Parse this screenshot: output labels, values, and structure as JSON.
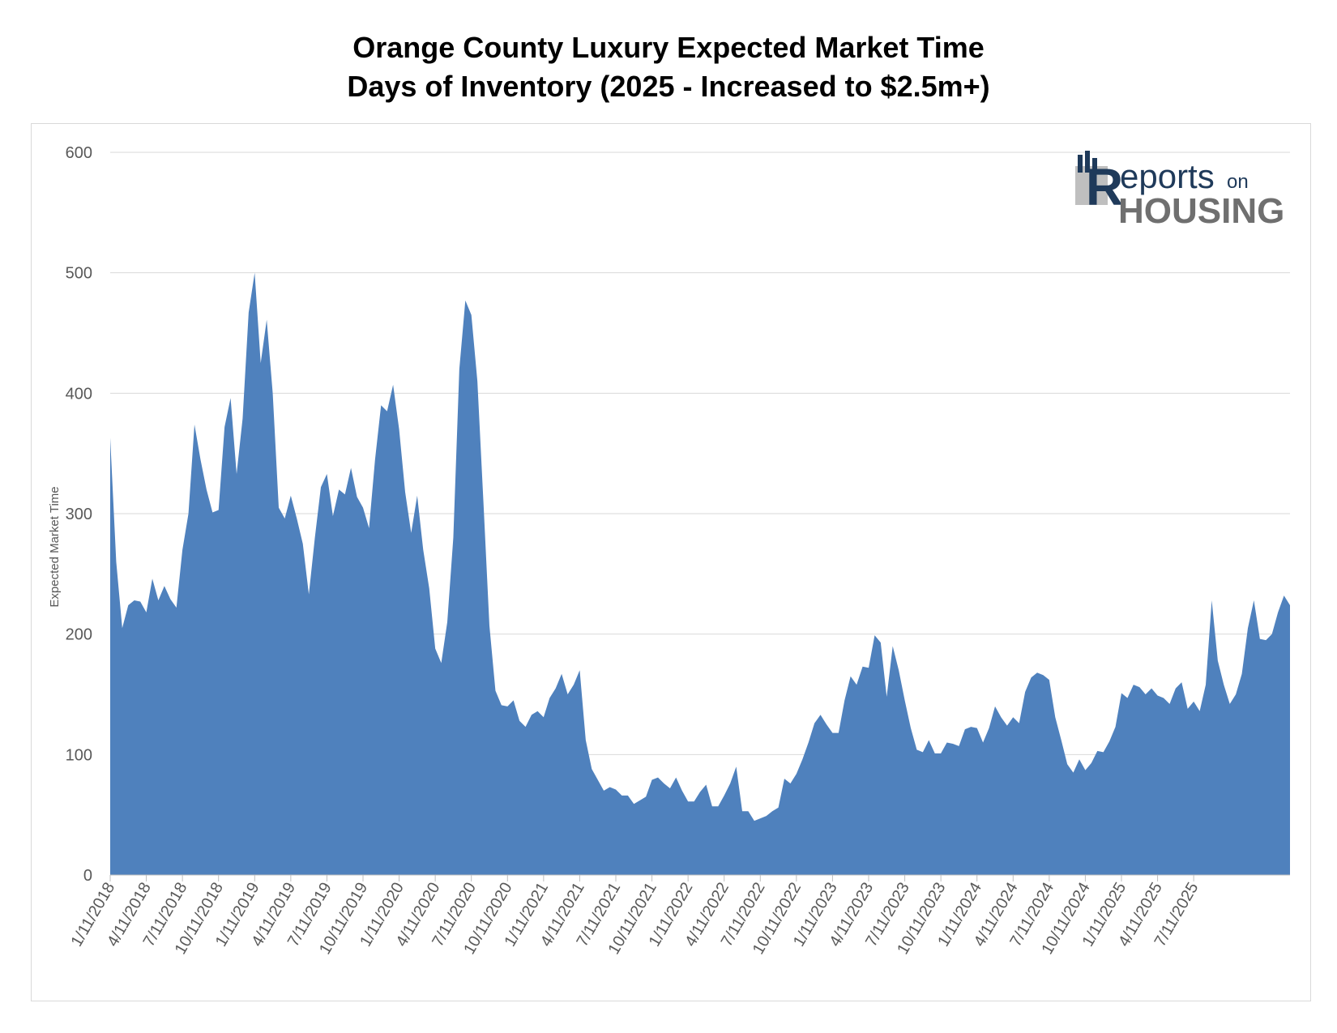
{
  "chart_data": {
    "type": "area",
    "title": "Orange County Luxury Expected Market Time",
    "subtitle": "Days of Inventory  (2025 - Increased to $2.5m+)",
    "ylabel": "Expected Market Time",
    "xlabel": "",
    "ylim": [
      0,
      600
    ],
    "yticks": [
      "0",
      "100",
      "200",
      "300",
      "400",
      "500",
      "600"
    ],
    "xticks": [
      "1/11/2018",
      "4/11/2018",
      "7/11/2018",
      "10/11/2018",
      "1/11/2019",
      "4/11/2019",
      "7/11/2019",
      "10/11/2019",
      "1/11/2020",
      "4/11/2020",
      "7/11/2020",
      "10/11/2020",
      "1/11/2021",
      "4/11/2021",
      "7/11/2021",
      "10/11/2021",
      "1/11/2022",
      "4/11/2022",
      "7/11/2022",
      "10/11/2022",
      "1/11/2023",
      "4/11/2023",
      "7/11/2023",
      "10/11/2023",
      "1/11/2024",
      "4/11/2024",
      "7/11/2024",
      "10/11/2024",
      "1/11/2025",
      "4/11/2025",
      "7/11/2025"
    ],
    "grid": true,
    "legend": "none",
    "color": "#4f81bd",
    "frequency": "semi-monthly",
    "x_start": "1/11/2018",
    "x_end": "8/11/2025",
    "values": [
      363,
      260,
      205,
      224,
      228,
      227,
      218,
      246,
      228,
      240,
      229,
      222,
      270,
      300,
      374,
      345,
      320,
      301,
      303,
      372,
      396,
      333,
      379,
      467,
      500,
      425,
      461,
      400,
      305,
      296,
      315,
      296,
      275,
      233,
      280,
      322,
      333,
      298,
      320,
      316,
      338,
      314,
      305,
      288,
      345,
      390,
      385,
      407,
      370,
      318,
      284,
      315,
      270,
      238,
      188,
      176,
      210,
      280,
      420,
      477,
      465,
      410,
      310,
      207,
      153,
      141,
      140,
      145,
      128,
      123,
      133,
      136,
      131,
      147,
      155,
      167,
      150,
      158,
      170,
      112,
      88,
      79,
      70,
      73,
      71,
      66,
      66,
      59,
      62,
      65,
      79,
      81,
      76,
      72,
      81,
      70,
      61,
      61,
      69,
      75,
      57,
      57,
      66,
      76,
      90,
      53,
      53,
      45,
      47,
      49,
      53,
      56,
      80,
      76,
      84,
      96,
      110,
      126,
      133,
      125,
      118,
      118,
      145,
      165,
      158,
      173,
      172,
      199,
      193,
      148,
      190,
      170,
      145,
      122,
      104,
      102,
      112,
      101,
      101,
      110,
      109,
      107,
      121,
      123,
      122,
      110,
      122,
      140,
      131,
      124,
      131,
      126,
      152,
      164,
      168,
      166,
      162,
      131,
      112,
      92,
      85,
      96,
      87,
      93,
      103,
      102,
      111,
      123,
      151,
      147,
      158,
      156,
      150,
      155,
      149,
      147,
      142,
      155,
      160,
      138,
      144,
      136,
      158,
      228,
      178,
      158,
      142,
      150,
      167,
      205,
      228,
      196,
      195,
      200,
      218,
      232,
      224
    ]
  },
  "logo": {
    "text_main": "eports",
    "text_on": "on",
    "text_housing": "HOUSING",
    "letter_r": "R"
  }
}
